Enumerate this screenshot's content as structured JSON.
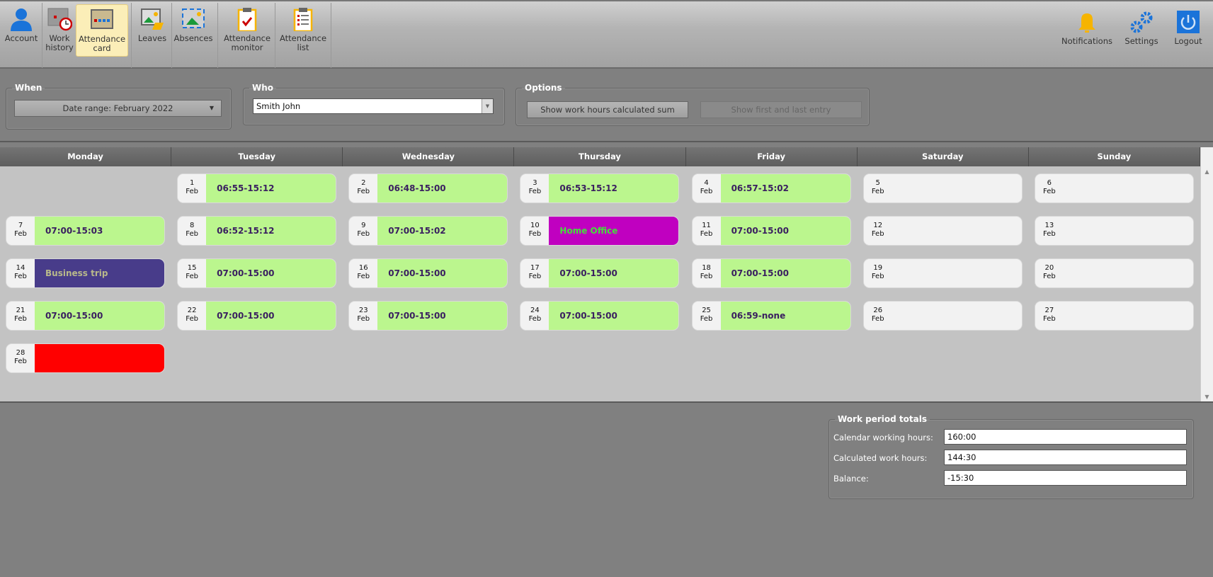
{
  "toolbar": {
    "items": [
      {
        "label": "Account",
        "icon": "user-icon"
      },
      {
        "label": "Work history",
        "icon": "calendar-clock-icon"
      },
      {
        "label": "Attendance card",
        "icon": "calendar-grid-icon",
        "active": true
      },
      {
        "label": "Leaves",
        "icon": "leave-image-icon"
      },
      {
        "label": "Absences",
        "icon": "absence-image-icon"
      },
      {
        "label": "Attendance monitor",
        "icon": "clipboard-check-icon"
      },
      {
        "label": "Attendance list",
        "icon": "clipboard-list-icon"
      }
    ],
    "right": [
      {
        "label": "Notifications",
        "icon": "bell-icon"
      },
      {
        "label": "Settings",
        "icon": "gears-icon"
      },
      {
        "label": "Logout",
        "icon": "power-icon"
      }
    ]
  },
  "filters": {
    "when": {
      "legend": "When",
      "value": "Date range: February 2022"
    },
    "who": {
      "legend": "Who",
      "value": "Smith John"
    },
    "options": {
      "legend": "Options",
      "sum_button": "Show work hours calculated sum",
      "entry_button": "Show first and last entry"
    }
  },
  "calendar": {
    "days": [
      "Monday",
      "Tuesday",
      "Wednesday",
      "Thursday",
      "Friday",
      "Saturday",
      "Sunday"
    ],
    "colors": {
      "work": "#bbf68e",
      "weekend": "#f2f2f2",
      "business_trip": "#483c8a",
      "home_office": "#c000c0",
      "missing": "#ff0000"
    },
    "weeks": [
      [
        null,
        {
          "day": "1",
          "month": "Feb",
          "text": "06:55-15:12",
          "type": "work"
        },
        {
          "day": "2",
          "month": "Feb",
          "text": "06:48-15:00",
          "type": "work"
        },
        {
          "day": "3",
          "month": "Feb",
          "text": "06:53-15:12",
          "type": "work"
        },
        {
          "day": "4",
          "month": "Feb",
          "text": "06:57-15:02",
          "type": "work"
        },
        {
          "day": "5",
          "month": "Feb",
          "text": "",
          "type": "weekend"
        },
        {
          "day": "6",
          "month": "Feb",
          "text": "",
          "type": "weekend"
        }
      ],
      [
        {
          "day": "7",
          "month": "Feb",
          "text": "07:00-15:03",
          "type": "work"
        },
        {
          "day": "8",
          "month": "Feb",
          "text": "06:52-15:12",
          "type": "work"
        },
        {
          "day": "9",
          "month": "Feb",
          "text": "07:00-15:02",
          "type": "work"
        },
        {
          "day": "10",
          "month": "Feb",
          "text": "Home Office",
          "type": "home_office"
        },
        {
          "day": "11",
          "month": "Feb",
          "text": "07:00-15:00",
          "type": "work"
        },
        {
          "day": "12",
          "month": "Feb",
          "text": "",
          "type": "weekend"
        },
        {
          "day": "13",
          "month": "Feb",
          "text": "",
          "type": "weekend"
        }
      ],
      [
        {
          "day": "14",
          "month": "Feb",
          "text": "Business trip",
          "type": "business_trip"
        },
        {
          "day": "15",
          "month": "Feb",
          "text": "07:00-15:00",
          "type": "work"
        },
        {
          "day": "16",
          "month": "Feb",
          "text": "07:00-15:00",
          "type": "work"
        },
        {
          "day": "17",
          "month": "Feb",
          "text": "07:00-15:00",
          "type": "work"
        },
        {
          "day": "18",
          "month": "Feb",
          "text": "07:00-15:00",
          "type": "work"
        },
        {
          "day": "19",
          "month": "Feb",
          "text": "",
          "type": "weekend"
        },
        {
          "day": "20",
          "month": "Feb",
          "text": "",
          "type": "weekend"
        }
      ],
      [
        {
          "day": "21",
          "month": "Feb",
          "text": "07:00-15:00",
          "type": "work"
        },
        {
          "day": "22",
          "month": "Feb",
          "text": "07:00-15:00",
          "type": "work"
        },
        {
          "day": "23",
          "month": "Feb",
          "text": "07:00-15:00",
          "type": "work"
        },
        {
          "day": "24",
          "month": "Feb",
          "text": "07:00-15:00",
          "type": "work"
        },
        {
          "day": "25",
          "month": "Feb",
          "text": "06:59-none",
          "type": "work"
        },
        {
          "day": "26",
          "month": "Feb",
          "text": "",
          "type": "weekend"
        },
        {
          "day": "27",
          "month": "Feb",
          "text": "",
          "type": "weekend"
        }
      ],
      [
        {
          "day": "28",
          "month": "Feb",
          "text": "",
          "type": "missing"
        },
        null,
        null,
        null,
        null,
        null,
        null
      ]
    ]
  },
  "totals": {
    "legend": "Work period totals",
    "calendar_label": "Calendar working hours:",
    "calendar_value": "160:00",
    "calculated_label": "Calculated work hours:",
    "calculated_value": "144:30",
    "balance_label": "Balance:",
    "balance_value": "-15:30"
  }
}
